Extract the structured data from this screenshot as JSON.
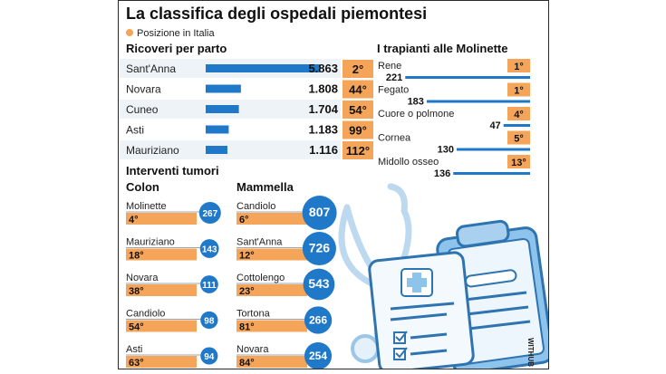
{
  "title": "La classifica degli ospedali piemontesi",
  "legend": {
    "label": "Posizione in Italia",
    "color": "#f5a55a"
  },
  "credit": "WITHUB",
  "colors": {
    "blue": "#1f78c8",
    "orange": "#f5a55a",
    "circle": "#1f78c8",
    "illustration": "#cfe6f7"
  },
  "chart_data": [
    {
      "type": "bar",
      "title": "Ricoveri per parto",
      "categories": [
        "Sant'Anna",
        "Novara",
        "Cuneo",
        "Asti",
        "Mauriziano"
      ],
      "values": [
        5863,
        1808,
        1704,
        1183,
        1116
      ],
      "value_labels": [
        "5.863",
        "1.808",
        "1.704",
        "1.183",
        "1.116"
      ],
      "rank_labels": [
        "2°",
        "44°",
        "54°",
        "99°",
        "112°"
      ]
    },
    {
      "type": "bar",
      "title": "I trapianti alle Molinette",
      "categories": [
        "Rene",
        "Fegato",
        "Cuore o polmone",
        "Cornea",
        "Midollo osseo"
      ],
      "values": [
        221,
        183,
        47,
        130,
        136
      ],
      "value_labels": [
        "221",
        "183",
        "47",
        "130",
        "136"
      ],
      "rank_labels": [
        "1°",
        "1°",
        "4°",
        "5°",
        "13°"
      ]
    },
    {
      "type": "scatter",
      "group_title": "Interventi tumori",
      "title": "Colon",
      "categories": [
        "Molinette",
        "Mauriziano",
        "Novara",
        "Candiolo",
        "Asti"
      ],
      "values": [
        267,
        143,
        111,
        98,
        94
      ],
      "value_labels": [
        "267",
        "143",
        "111",
        "98",
        "94"
      ],
      "rank_labels": [
        "4°",
        "18°",
        "38°",
        "54°",
        "63°"
      ]
    },
    {
      "type": "scatter",
      "title": "Mammella",
      "categories": [
        "Candiolo",
        "Sant'Anna",
        "Cottolengo",
        "Tortona",
        "Novara"
      ],
      "values": [
        807,
        726,
        543,
        266,
        254
      ],
      "value_labels": [
        "807",
        "726",
        "543",
        "266",
        "254"
      ],
      "rank_labels": [
        "6°",
        "12°",
        "23°",
        "81°",
        "84°"
      ]
    }
  ]
}
